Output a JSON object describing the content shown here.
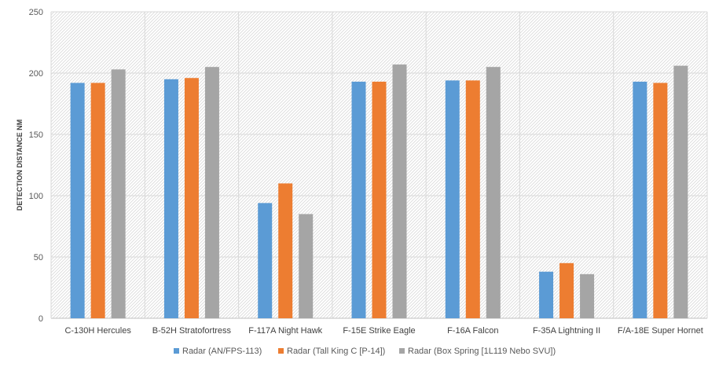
{
  "chart_data": {
    "type": "bar",
    "title": "",
    "xlabel": "",
    "ylabel": "DETECTION DISTANCE NM",
    "ylim": [
      0,
      250
    ],
    "yticks": [
      0,
      50,
      100,
      150,
      200,
      250
    ],
    "grid": true,
    "legend_position": "bottom",
    "categories": [
      "C-130H Hercules",
      "B-52H Stratofortress",
      "F-117A Night Hawk",
      "F-15E Strike Eagle",
      "F-16A Falcon",
      "F-35A Lightning II",
      "F/A-18E Super Hornet"
    ],
    "series": [
      {
        "name": "Radar (AN/FPS-113)",
        "color": "#5B9BD5",
        "values": [
          192,
          195,
          94,
          193,
          194,
          38,
          193
        ]
      },
      {
        "name": "Radar (Tall King C [P-14])",
        "color": "#ED7D31",
        "values": [
          192,
          196,
          110,
          193,
          194,
          45,
          192
        ]
      },
      {
        "name": "Radar (Box Spring [1L119 Nebo SVU])",
        "color": "#A5A5A5",
        "values": [
          203,
          205,
          85,
          207,
          205,
          36,
          206
        ]
      }
    ]
  }
}
